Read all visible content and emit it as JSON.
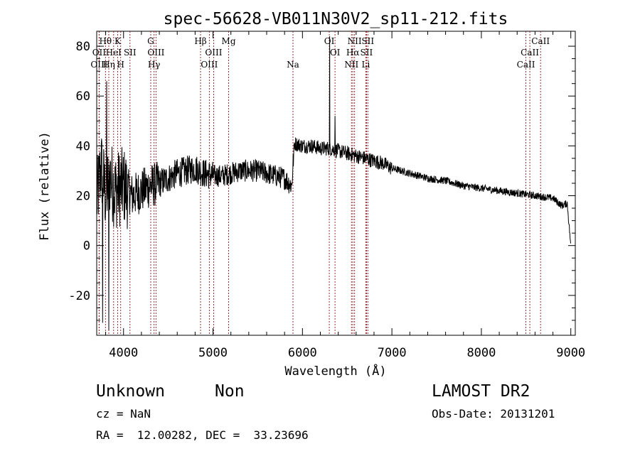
{
  "chart_data": {
    "type": "line",
    "title": "spec-56628-VB011N30V2_sp11-212.fits",
    "xlabel": "Wavelength (Å)",
    "ylabel": "Flux (relative)",
    "xlim": [
      3700,
      9050
    ],
    "ylim": [
      -36,
      86
    ],
    "xticks": [
      4000,
      5000,
      6000,
      7000,
      8000,
      9000
    ],
    "yticks": [
      -20,
      0,
      20,
      40,
      60,
      80
    ],
    "line_color": "#000000",
    "marker_color": "#8b1a1a",
    "spectrum_anchors": [
      [
        3700,
        18
      ],
      [
        3750,
        32
      ],
      [
        3800,
        20
      ],
      [
        3850,
        28
      ],
      [
        3900,
        22
      ],
      [
        4000,
        24
      ],
      [
        4100,
        20
      ],
      [
        4200,
        22
      ],
      [
        4300,
        24
      ],
      [
        4400,
        25
      ],
      [
        4500,
        27
      ],
      [
        4600,
        29
      ],
      [
        4700,
        30
      ],
      [
        4800,
        31
      ],
      [
        4900,
        29
      ],
      [
        5000,
        28
      ],
      [
        5100,
        28
      ],
      [
        5200,
        29
      ],
      [
        5300,
        30
      ],
      [
        5400,
        30
      ],
      [
        5500,
        30
      ],
      [
        5600,
        29
      ],
      [
        5700,
        28
      ],
      [
        5800,
        27
      ],
      [
        5880,
        24
      ],
      [
        5910,
        41
      ],
      [
        6000,
        40
      ],
      [
        6100,
        40
      ],
      [
        6200,
        39
      ],
      [
        6300,
        39
      ],
      [
        6400,
        38
      ],
      [
        6500,
        37
      ],
      [
        6600,
        36
      ],
      [
        6700,
        35
      ],
      [
        6800,
        34
      ],
      [
        6900,
        33
      ],
      [
        7000,
        31
      ],
      [
        7200,
        29
      ],
      [
        7400,
        27
      ],
      [
        7600,
        26
      ],
      [
        7800,
        24
      ],
      [
        8000,
        23
      ],
      [
        8200,
        22
      ],
      [
        8400,
        21
      ],
      [
        8600,
        20
      ],
      [
        8800,
        19
      ],
      [
        8900,
        16
      ],
      [
        8960,
        17
      ],
      [
        9000,
        0
      ]
    ],
    "spectrum_features": [
      {
        "wavelength": 6303,
        "flux": 84
      },
      {
        "wavelength": 6364,
        "flux": 52
      },
      {
        "wavelength": 3810,
        "flux": 66
      },
      {
        "wavelength": 3835,
        "flux": -34
      },
      {
        "wavelength": 3765,
        "flux": -31
      }
    ],
    "lines": [
      {
        "label": "OII",
        "wavelength": 3727,
        "row": 1
      },
      {
        "label": "OIII",
        "wavelength": 3727,
        "row": 2
      },
      {
        "label": "Hθ",
        "wavelength": 3798,
        "row": 0
      },
      {
        "label": "Hη",
        "wavelength": 3835,
        "row": 2
      },
      {
        "label": "HeI",
        "wavelength": 3889,
        "row": 1
      },
      {
        "label": "K",
        "wavelength": 3934,
        "row": 0
      },
      {
        "label": "H",
        "wavelength": 3968,
        "row": 2
      },
      {
        "label": "SII",
        "wavelength": 4072,
        "row": 1
      },
      {
        "label": "G",
        "wavelength": 4304,
        "row": 0
      },
      {
        "label": "Hγ",
        "wavelength": 4341,
        "row": 2
      },
      {
        "label": "OIII",
        "wavelength": 4363,
        "row": 1
      },
      {
        "label": "Hβ",
        "wavelength": 4861,
        "row": 0
      },
      {
        "label": "OIII",
        "wavelength": 4959,
        "row": 2
      },
      {
        "label": "OIII",
        "wavelength": 5007,
        "row": 1
      },
      {
        "label": "Mg",
        "wavelength": 5175,
        "row": 0
      },
      {
        "label": "Na",
        "wavelength": 5894,
        "row": 2
      },
      {
        "label": "OI",
        "wavelength": 6300,
        "row": 0
      },
      {
        "label": "OI",
        "wavelength": 6364,
        "row": 1
      },
      {
        "label": "NII",
        "wavelength": 6548,
        "row": 2
      },
      {
        "label": "Hα",
        "wavelength": 6563,
        "row": 1
      },
      {
        "label": "NII",
        "wavelength": 6583,
        "row": 0
      },
      {
        "label": "SII",
        "wavelength": 6716,
        "row": 1
      },
      {
        "label": "Li",
        "wavelength": 6708,
        "row": 2
      },
      {
        "label": "SII",
        "wavelength": 6731,
        "row": 0
      },
      {
        "label": "CaII",
        "wavelength": 8498,
        "row": 2
      },
      {
        "label": "CaII",
        "wavelength": 8542,
        "row": 1
      },
      {
        "label": "CaII",
        "wavelength": 8662,
        "row": 0
      }
    ]
  },
  "info": {
    "class": "Unknown",
    "subclass": "Non",
    "survey": "LAMOST DR2",
    "cz": "cz = NaN",
    "obs_date": "Obs-Date: 20131201",
    "radec": "RA =  12.00282, DEC =  33.23696"
  }
}
